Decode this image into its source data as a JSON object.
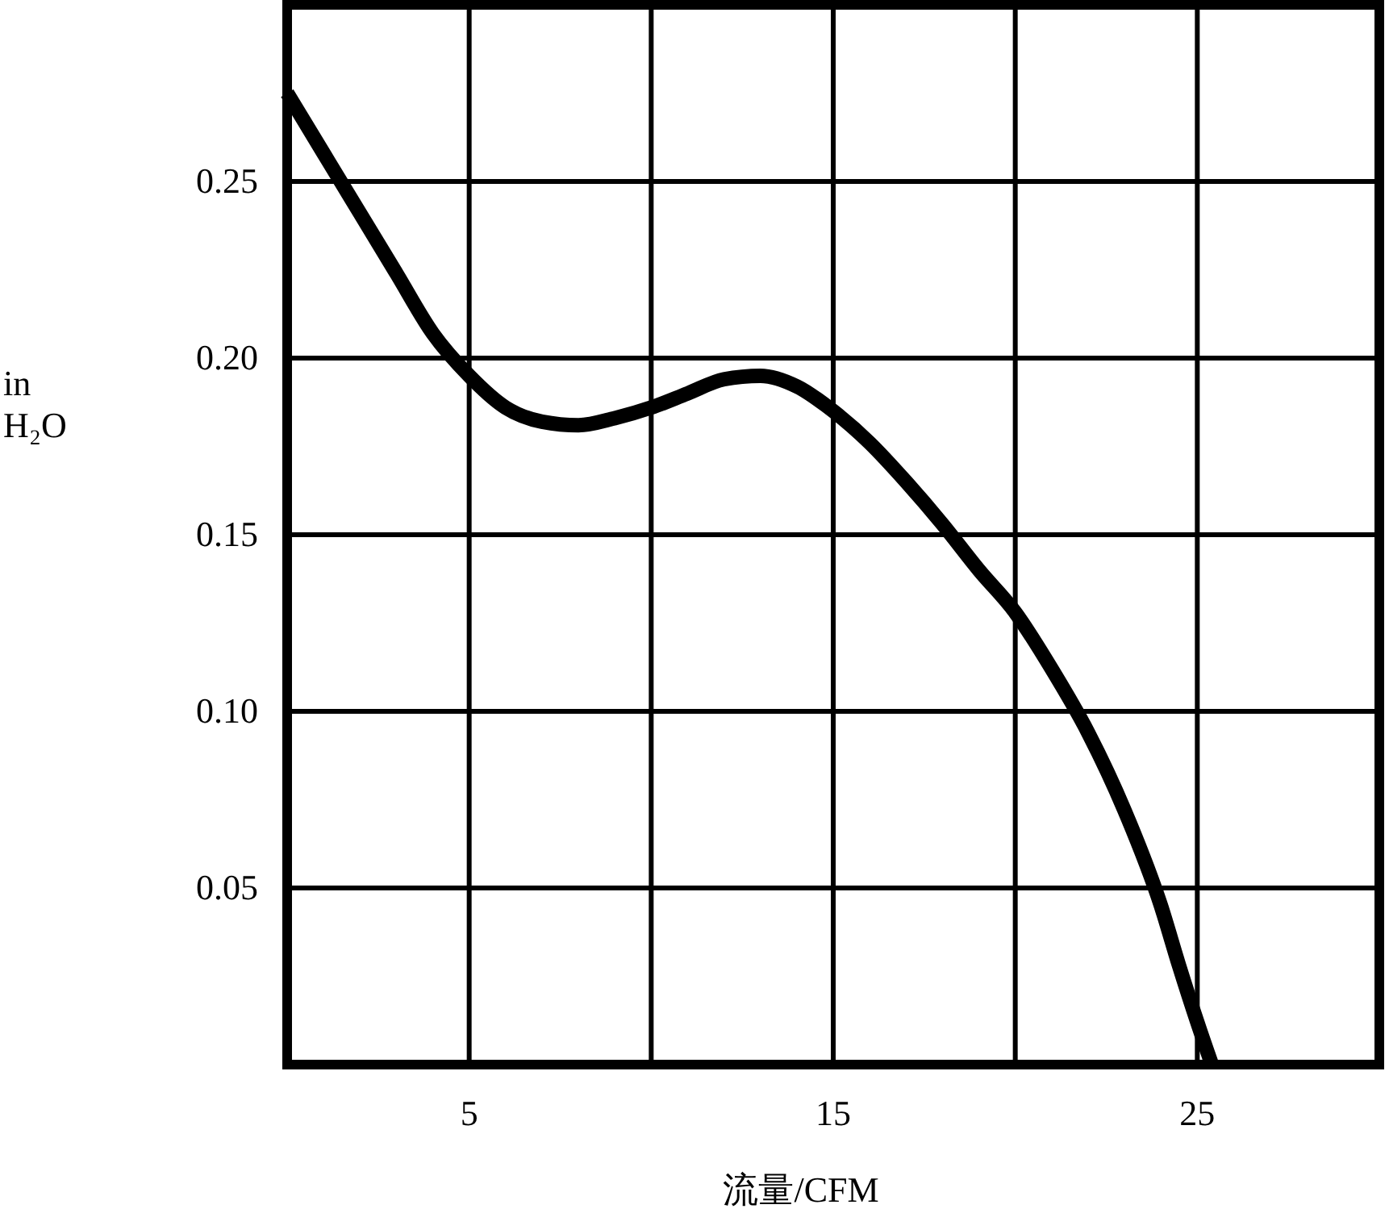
{
  "chart_data": {
    "type": "line",
    "xlabel": "流量/CFM",
    "ylabel": "in H₂O",
    "x": [
      0,
      1,
      2,
      3,
      4,
      5,
      6,
      7,
      8,
      9,
      10,
      11,
      12,
      13,
      14,
      15,
      16,
      17,
      18,
      19,
      20,
      21,
      22,
      23,
      24,
      24.5,
      25,
      25.4
    ],
    "series": [
      {
        "color": "#000000",
        "values": [
          0.275,
          0.258,
          0.241,
          0.224,
          0.207,
          0.195,
          0.186,
          0.182,
          0.181,
          0.183,
          0.186,
          0.19,
          0.194,
          0.195,
          0.192,
          0.185,
          0.176,
          0.165,
          0.153,
          0.14,
          0.128,
          0.112,
          0.094,
          0.072,
          0.045,
          0.028,
          0.012,
          0
        ]
      }
    ],
    "xlim": [
      0,
      30
    ],
    "ylim": [
      0,
      0.3
    ],
    "xticks": [
      {
        "value": 5,
        "label": "5"
      },
      {
        "value": 10,
        "label": null
      },
      {
        "value": 15,
        "label": "15"
      },
      {
        "value": 20,
        "label": null
      },
      {
        "value": 25,
        "label": "25"
      }
    ],
    "yticks": [
      {
        "value": 0.05,
        "label": "0.05"
      },
      {
        "value": 0.1,
        "label": "0.10"
      },
      {
        "value": 0.15,
        "label": "0.15"
      },
      {
        "value": 0.2,
        "label": "0.20"
      },
      {
        "value": 0.25,
        "label": "0.25"
      }
    ],
    "grid": true,
    "marker": "none",
    "line_style": "solid"
  }
}
